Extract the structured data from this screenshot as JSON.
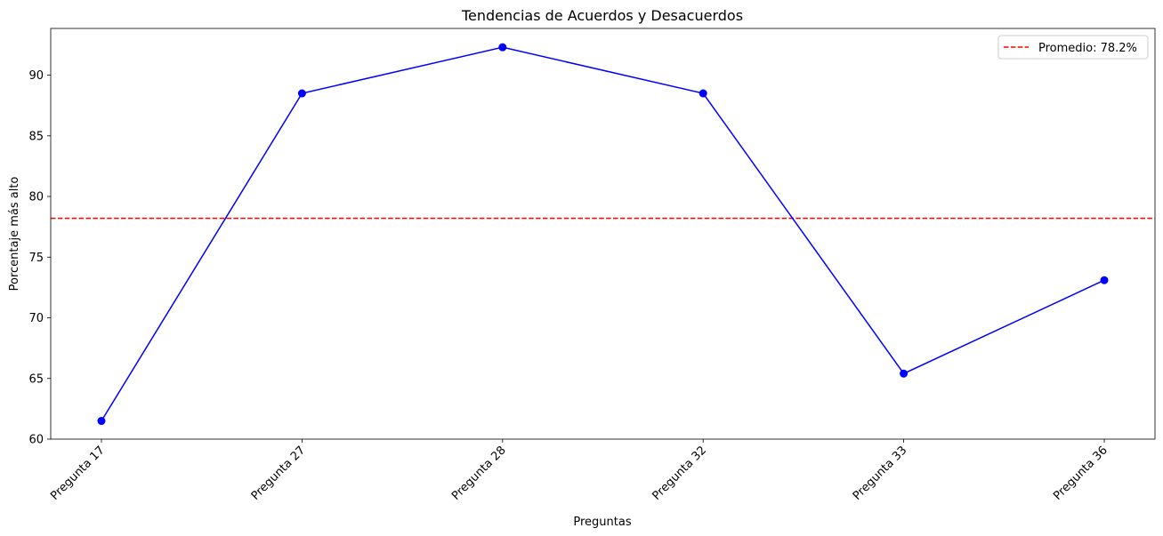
{
  "chart_data": {
    "type": "line",
    "title": "Tendencias de Acuerdos y Desacuerdos",
    "xlabel": "Preguntas",
    "ylabel": "Porcentaje más alto",
    "categories": [
      "Pregunta 17",
      "Pregunta 27",
      "Pregunta 28",
      "Pregunta 32",
      "Pregunta 33",
      "Pregunta 36"
    ],
    "series": [
      {
        "values": [
          61.5,
          88.5,
          92.3,
          88.5,
          65.4,
          73.1
        ],
        "color": "#0000ff",
        "marker": "circle"
      }
    ],
    "reference_line": {
      "value": 78.2,
      "label": "Promedio: 78.2%",
      "color": "#ff0000",
      "style": "dashed"
    },
    "ylim": [
      60,
      93.85
    ],
    "yticks": [
      60,
      65,
      70,
      75,
      80,
      85,
      90
    ],
    "grid": false,
    "legend_position": "top-right"
  }
}
